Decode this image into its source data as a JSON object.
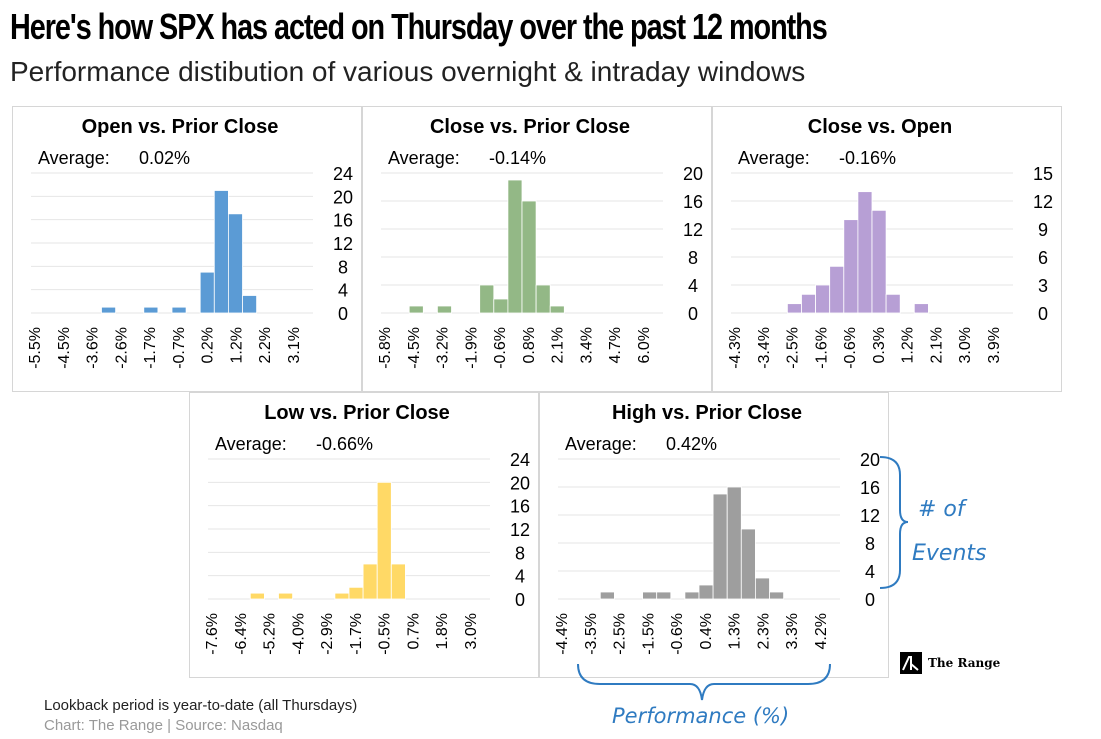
{
  "header": {
    "title_part1": "Here's how SPX has acted on ",
    "title_highlight": "Thursday",
    "title_part2": " over the past 12 months",
    "subtitle": "Performance distibution of various overnight & intraday windows"
  },
  "footer": {
    "note": "Lookback period is year-to-date (all Thursdays)",
    "source": "Chart: The Range | Source: Nasdaq"
  },
  "brand": {
    "name": "The Range"
  },
  "annotations": {
    "events_line1": "# of",
    "events_line2": "Events",
    "performance": "Performance (%)",
    "color": "#2f7bc1"
  },
  "chart_data": [
    {
      "id": "open-vs-prior-close",
      "type": "bar",
      "title": "Open vs. Prior Close",
      "average_label": "Average:",
      "average_value": "0.02%",
      "color": "#5b9bd5",
      "x_tick_labels": [
        "-5.5%",
        "-4.5%",
        "-3.6%",
        "-2.6%",
        "-1.7%",
        "-0.7%",
        "0.2%",
        "1.2%",
        "2.2%",
        "3.1%"
      ],
      "y_ticks": [
        0,
        4,
        8,
        12,
        16,
        20,
        24
      ],
      "ylim": [
        0,
        24
      ],
      "bins": 20,
      "values": [
        0,
        0,
        0,
        0,
        0,
        1,
        0,
        0,
        1,
        0,
        1,
        0,
        7,
        21,
        17,
        3,
        0,
        0,
        0,
        0
      ],
      "xlabel": "Performance (%)",
      "ylabel": "# of Events"
    },
    {
      "id": "close-vs-prior-close",
      "type": "bar",
      "title": "Close vs. Prior Close",
      "average_label": "Average:",
      "average_value": "-0.14%",
      "color": "#93b886",
      "x_tick_labels": [
        "-5.8%",
        "-4.5%",
        "-3.2%",
        "-1.9%",
        "-0.6%",
        "0.8%",
        "2.1%",
        "3.4%",
        "4.7%",
        "6.0%"
      ],
      "y_ticks": [
        0,
        4,
        8,
        12,
        16,
        20
      ],
      "ylim": [
        0,
        20
      ],
      "bins": 20,
      "values": [
        0,
        0,
        1,
        0,
        1,
        0,
        0,
        4,
        2,
        19,
        16,
        4,
        1,
        0,
        0,
        0,
        0,
        0,
        0,
        0
      ],
      "xlabel": "Performance (%)",
      "ylabel": "# of Events"
    },
    {
      "id": "close-vs-open",
      "type": "bar",
      "title": "Close vs. Open",
      "average_label": "Average:",
      "average_value": "-0.16%",
      "color": "#b79fd5",
      "x_tick_labels": [
        "-4.3%",
        "-3.4%",
        "-2.5%",
        "-1.6%",
        "-0.6%",
        "0.3%",
        "1.2%",
        "2.1%",
        "3.0%",
        "3.9%"
      ],
      "y_ticks": [
        0,
        3,
        6,
        9,
        12,
        15
      ],
      "ylim": [
        0,
        15
      ],
      "bins": 20,
      "values": [
        0,
        0,
        0,
        0,
        1,
        2,
        3,
        5,
        10,
        13,
        11,
        2,
        0,
        1,
        0,
        0,
        0,
        0,
        0,
        0
      ],
      "xlabel": "Performance (%)",
      "ylabel": "# of Events"
    },
    {
      "id": "low-vs-prior-close",
      "type": "bar",
      "title": "Low vs. Prior Close",
      "average_label": "Average:",
      "average_value": "-0.66%",
      "color": "#ffd966",
      "x_tick_labels": [
        "-7.6%",
        "-6.4%",
        "-5.2%",
        "-4.0%",
        "-2.9%",
        "-1.7%",
        "-0.5%",
        "0.7%",
        "1.8%",
        "3.0%"
      ],
      "y_ticks": [
        0,
        4,
        8,
        12,
        16,
        20,
        24
      ],
      "ylim": [
        0,
        24
      ],
      "bins": 20,
      "values": [
        0,
        0,
        0,
        1,
        0,
        1,
        0,
        0,
        0,
        1,
        2,
        6,
        20,
        6,
        0,
        0,
        0,
        0,
        0,
        0
      ],
      "xlabel": "Performance (%)",
      "ylabel": "# of Events"
    },
    {
      "id": "high-vs-prior-close",
      "type": "bar",
      "title": "High vs. Prior Close",
      "average_label": "Average:",
      "average_value": "0.42%",
      "color": "#9e9e9e",
      "x_tick_labels": [
        "-4.4%",
        "-3.5%",
        "-2.5%",
        "-1.5%",
        "-0.6%",
        "0.4%",
        "1.3%",
        "2.3%",
        "3.3%",
        "4.2%"
      ],
      "y_ticks": [
        0,
        4,
        8,
        12,
        16,
        20
      ],
      "ylim": [
        0,
        20
      ],
      "bins": 20,
      "values": [
        0,
        0,
        0,
        1,
        0,
        0,
        1,
        1,
        0,
        1,
        2,
        15,
        16,
        10,
        3,
        1,
        0,
        0,
        0,
        0
      ],
      "xlabel": "Performance (%)",
      "ylabel": "# of Events"
    }
  ]
}
